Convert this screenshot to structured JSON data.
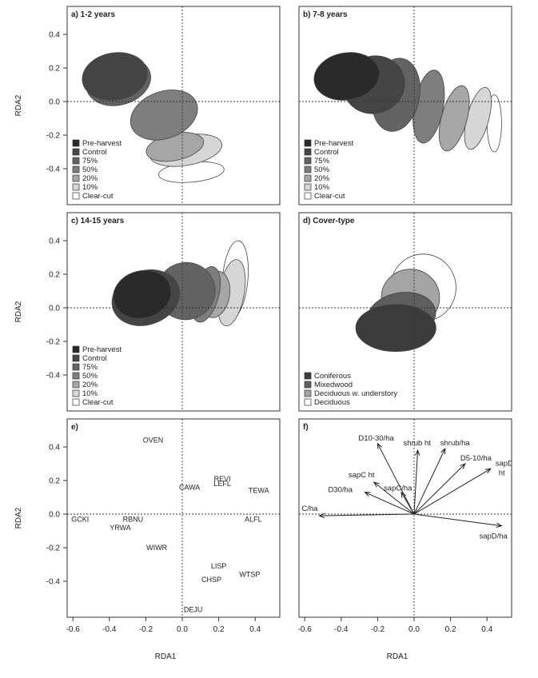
{
  "colors": {
    "Pre-harvest": "#2a2a2a",
    "Control": "#454545",
    "75%": "#636363",
    "50%": "#7e7e7e",
    "20%": "#a6a6a6",
    "10%": "#d6d6d6",
    "Clear-cut": "#ffffff",
    "Coniferous": "#3c3c3c",
    "Mixedwood": "#5e5e5e",
    "Deciduous w. understory": "#a4a4a4",
    "Deciduous": "#ffffff"
  },
  "axes": {
    "xlabel": "RDA1",
    "ylabel": "RDA2",
    "xlim": [
      -0.62,
      0.52
    ],
    "ylim": [
      -0.6,
      0.5
    ],
    "xticks": [
      -0.6,
      -0.4,
      -0.2,
      0.0,
      0.2,
      0.4
    ],
    "yticks": [
      -0.4,
      -0.2,
      0.0,
      0.2,
      0.4
    ]
  },
  "chart_data": [
    {
      "type": "scatter",
      "panel": "a",
      "title": "a) 1-2 years",
      "legend": [
        "Pre-harvest",
        "Control",
        "75%",
        "50%",
        "20%",
        "10%",
        "Clear-cut"
      ],
      "ellipses": [
        {
          "group": "Clear-cut",
          "cx": 0.05,
          "cy": -0.42,
          "rx": 0.18,
          "ry": 0.06,
          "angle": -5
        },
        {
          "group": "10%",
          "cx": 0.02,
          "cy": -0.29,
          "rx": 0.2,
          "ry": 0.09,
          "angle": -10
        },
        {
          "group": "20%",
          "cx": -0.04,
          "cy": -0.27,
          "rx": 0.16,
          "ry": 0.08,
          "angle": -12
        },
        {
          "group": "50%",
          "cx": -0.1,
          "cy": -0.08,
          "rx": 0.19,
          "ry": 0.14,
          "angle": -20
        },
        {
          "group": "75%",
          "cx": -0.35,
          "cy": 0.12,
          "rx": 0.18,
          "ry": 0.14,
          "angle": -15
        },
        {
          "group": "Control",
          "cx": -0.37,
          "cy": 0.15,
          "rx": 0.18,
          "ry": 0.14,
          "angle": -10
        }
      ]
    },
    {
      "type": "scatter",
      "panel": "b",
      "title": "b) 7-8 years",
      "legend": [
        "Pre-harvest",
        "Control",
        "75%",
        "50%",
        "20%",
        "10%",
        "Clear-cut"
      ],
      "ellipses": [
        {
          "group": "Clear-cut",
          "cx": 0.44,
          "cy": -0.13,
          "rx": 0.04,
          "ry": 0.17,
          "angle": 0
        },
        {
          "group": "10%",
          "cx": 0.35,
          "cy": -0.1,
          "rx": 0.06,
          "ry": 0.19,
          "angle": 15
        },
        {
          "group": "20%",
          "cx": 0.22,
          "cy": -0.1,
          "rx": 0.07,
          "ry": 0.2,
          "angle": 15
        },
        {
          "group": "50%",
          "cx": 0.08,
          "cy": -0.03,
          "rx": 0.08,
          "ry": 0.22,
          "angle": 10
        },
        {
          "group": "75%",
          "cx": -0.1,
          "cy": 0.04,
          "rx": 0.13,
          "ry": 0.22,
          "angle": 10
        },
        {
          "group": "Control",
          "cx": -0.22,
          "cy": 0.1,
          "rx": 0.17,
          "ry": 0.17,
          "angle": -20
        },
        {
          "group": "Pre-harvest",
          "cx": -0.37,
          "cy": 0.15,
          "rx": 0.18,
          "ry": 0.14,
          "angle": -10
        }
      ]
    },
    {
      "type": "scatter",
      "panel": "c",
      "title": "c) 14-15 years",
      "legend": [
        "Pre-harvest",
        "Control",
        "75%",
        "50%",
        "20%",
        "10%",
        "Clear-cut"
      ],
      "ellipses": [
        {
          "group": "Clear-cut",
          "cx": 0.29,
          "cy": 0.17,
          "rx": 0.07,
          "ry": 0.23,
          "angle": 5
        },
        {
          "group": "10%",
          "cx": 0.27,
          "cy": 0.09,
          "rx": 0.07,
          "ry": 0.2,
          "angle": 10
        },
        {
          "group": "20%",
          "cx": 0.18,
          "cy": 0.08,
          "rx": 0.08,
          "ry": 0.14,
          "angle": 10
        },
        {
          "group": "50%",
          "cx": 0.13,
          "cy": 0.08,
          "rx": 0.07,
          "ry": 0.17,
          "angle": 15
        },
        {
          "group": "75%",
          "cx": 0.02,
          "cy": 0.1,
          "rx": 0.16,
          "ry": 0.17,
          "angle": -20
        },
        {
          "group": "Control",
          "cx": -0.2,
          "cy": 0.06,
          "rx": 0.19,
          "ry": 0.16,
          "angle": -20
        },
        {
          "group": "Pre-harvest",
          "cx": -0.22,
          "cy": 0.08,
          "rx": 0.16,
          "ry": 0.14,
          "angle": -15
        }
      ]
    },
    {
      "type": "scatter",
      "panel": "d",
      "title": "d) Cover-type",
      "legend": [
        "Coniferous",
        "Mixedwood",
        "Deciduous w. understory",
        "Deciduous"
      ],
      "ellipses": [
        {
          "group": "Deciduous",
          "cx": 0.05,
          "cy": 0.12,
          "rx": 0.18,
          "ry": 0.2,
          "angle": 0
        },
        {
          "group": "Deciduous w. understory",
          "cx": -0.02,
          "cy": 0.06,
          "rx": 0.16,
          "ry": 0.17,
          "angle": 0
        },
        {
          "group": "Mixedwood",
          "cx": -0.07,
          "cy": -0.05,
          "rx": 0.19,
          "ry": 0.14,
          "angle": -10
        },
        {
          "group": "Coniferous",
          "cx": -0.1,
          "cy": -0.12,
          "rx": 0.22,
          "ry": 0.14,
          "angle": 0
        }
      ]
    },
    {
      "type": "scatter",
      "panel": "e",
      "title": "e)",
      "points": [
        {
          "label": "OVEN",
          "x": -0.16,
          "y": 0.44
        },
        {
          "label": "REVI",
          "x": 0.22,
          "y": 0.21
        },
        {
          "label": "LEFL",
          "x": 0.22,
          "y": 0.18
        },
        {
          "label": "CAWA",
          "x": 0.04,
          "y": 0.16
        },
        {
          "label": "TEWA",
          "x": 0.42,
          "y": 0.14
        },
        {
          "label": "GCKI",
          "x": -0.56,
          "y": -0.03
        },
        {
          "label": "RBNU",
          "x": -0.27,
          "y": -0.03
        },
        {
          "label": "YRWA",
          "x": -0.34,
          "y": -0.08
        },
        {
          "label": "ALFL",
          "x": 0.39,
          "y": -0.03
        },
        {
          "label": "WIWR",
          "x": -0.14,
          "y": -0.2
        },
        {
          "label": "LISP",
          "x": 0.2,
          "y": -0.31
        },
        {
          "label": "WTSP",
          "x": 0.37,
          "y": -0.36
        },
        {
          "label": "CHSP",
          "x": 0.16,
          "y": -0.39
        },
        {
          "label": "DEJU",
          "x": 0.06,
          "y": -0.57
        }
      ]
    },
    {
      "type": "scatter",
      "panel": "f",
      "title": "f)",
      "vectors": [
        {
          "label": "D10-30/ha",
          "x": -0.2,
          "y": 0.42
        },
        {
          "label": "shrub ht",
          "x": 0.02,
          "y": 0.38
        },
        {
          "label": "shrub/ha",
          "x": 0.17,
          "y": 0.39
        },
        {
          "label": "D5-10/ha",
          "x": 0.28,
          "y": 0.3
        },
        {
          "label": "sapD ht",
          "x": 0.42,
          "y": 0.27
        },
        {
          "label": "sapC ht",
          "x": -0.22,
          "y": 0.19
        },
        {
          "label": "sapC/ha",
          "x": -0.07,
          "y": 0.13
        },
        {
          "label": "D30/ha",
          "x": -0.27,
          "y": 0.13
        },
        {
          "label": "C/ha",
          "x": -0.52,
          "y": -0.01
        },
        {
          "label": "sapD/ha",
          "x": 0.48,
          "y": -0.07
        }
      ]
    }
  ]
}
